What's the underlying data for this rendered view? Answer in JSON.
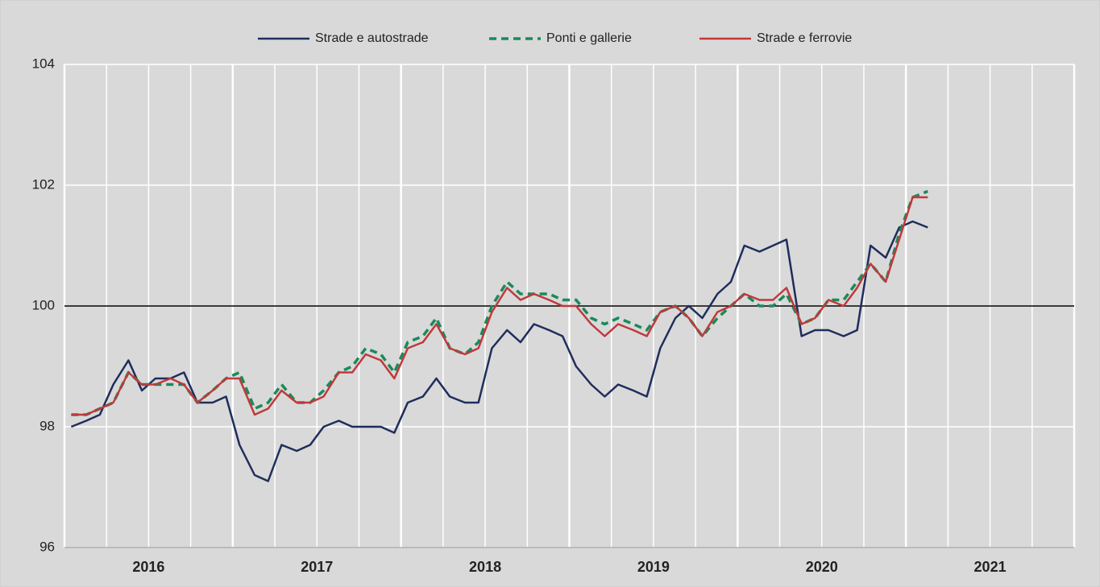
{
  "chart_data": {
    "type": "line",
    "x": [
      2016.04,
      2016.13,
      2016.21,
      2016.29,
      2016.38,
      2016.46,
      2016.54,
      2016.63,
      2016.71,
      2016.79,
      2016.88,
      2016.96,
      2017.04,
      2017.13,
      2017.21,
      2017.29,
      2017.38,
      2017.46,
      2017.54,
      2017.63,
      2017.71,
      2017.79,
      2017.88,
      2017.96,
      2018.04,
      2018.13,
      2018.21,
      2018.29,
      2018.38,
      2018.46,
      2018.54,
      2018.63,
      2018.71,
      2018.79,
      2018.88,
      2018.96,
      2019.04,
      2019.13,
      2019.21,
      2019.29,
      2019.38,
      2019.46,
      2019.54,
      2019.63,
      2019.71,
      2019.79,
      2019.88,
      2019.96,
      2020.04,
      2020.13,
      2020.21,
      2020.29,
      2020.38,
      2020.46,
      2020.54,
      2020.63,
      2020.71,
      2020.79,
      2020.88,
      2020.96,
      2021.04,
      2021.13
    ],
    "series": [
      {
        "name": "Strade e autostrade",
        "color": "#1f2d5c",
        "dashed": false,
        "values": [
          98.0,
          98.1,
          98.2,
          98.7,
          99.1,
          98.6,
          98.8,
          98.8,
          98.9,
          98.4,
          98.4,
          98.5,
          97.7,
          97.2,
          97.1,
          97.7,
          97.6,
          97.7,
          98.0,
          98.1,
          98.0,
          98.0,
          98.0,
          97.9,
          98.4,
          98.5,
          98.8,
          98.5,
          98.4,
          98.4,
          99.3,
          99.6,
          99.4,
          99.7,
          99.6,
          99.5,
          99.0,
          98.7,
          98.5,
          98.7,
          98.6,
          98.5,
          99.3,
          99.8,
          100.0,
          99.8,
          100.2,
          100.4,
          101.0,
          100.9,
          101.0,
          101.1,
          99.5,
          99.6,
          99.6,
          99.5,
          99.6,
          101.0,
          100.8,
          101.3,
          101.4,
          101.3
        ]
      },
      {
        "name": "Ponti e gallerie",
        "color": "#1a8a5a",
        "dashed": true,
        "values": [
          98.2,
          98.2,
          98.3,
          98.4,
          98.9,
          98.7,
          98.7,
          98.7,
          98.7,
          98.4,
          98.6,
          98.8,
          98.9,
          98.3,
          98.4,
          98.7,
          98.4,
          98.4,
          98.6,
          98.9,
          99.0,
          99.3,
          99.2,
          98.9,
          99.4,
          99.5,
          99.8,
          99.3,
          99.2,
          99.4,
          100.0,
          100.4,
          100.2,
          100.2,
          100.2,
          100.1,
          100.1,
          99.8,
          99.7,
          99.8,
          99.7,
          99.6,
          99.9,
          100.0,
          99.8,
          99.5,
          99.8,
          100.0,
          100.2,
          100.0,
          100.0,
          100.2,
          99.7,
          99.8,
          100.1,
          100.1,
          100.4,
          100.7,
          100.4,
          101.2,
          101.8,
          101.9
        ]
      },
      {
        "name": "Strade e ferrovie",
        "color": "#c0393b",
        "dashed": false,
        "values": [
          98.2,
          98.2,
          98.3,
          98.4,
          98.9,
          98.7,
          98.7,
          98.8,
          98.7,
          98.4,
          98.6,
          98.8,
          98.8,
          98.2,
          98.3,
          98.6,
          98.4,
          98.4,
          98.5,
          98.9,
          98.9,
          99.2,
          99.1,
          98.8,
          99.3,
          99.4,
          99.7,
          99.3,
          99.2,
          99.3,
          99.9,
          100.3,
          100.1,
          100.2,
          100.1,
          100.0,
          100.0,
          99.7,
          99.5,
          99.7,
          99.6,
          99.5,
          99.9,
          100.0,
          99.8,
          99.5,
          99.9,
          100.0,
          100.2,
          100.1,
          100.1,
          100.3,
          99.7,
          99.8,
          100.1,
          100.0,
          100.3,
          100.7,
          100.4,
          101.1,
          101.8,
          101.8
        ]
      }
    ],
    "xlim": [
      2016,
      2022
    ],
    "xticks": [
      2016,
      2017,
      2018,
      2019,
      2020,
      2021
    ],
    "ylim": [
      96,
      104
    ],
    "yticks": [
      96,
      98,
      100,
      102,
      104
    ],
    "reference_line": 100,
    "grid": true,
    "legend": "top"
  }
}
